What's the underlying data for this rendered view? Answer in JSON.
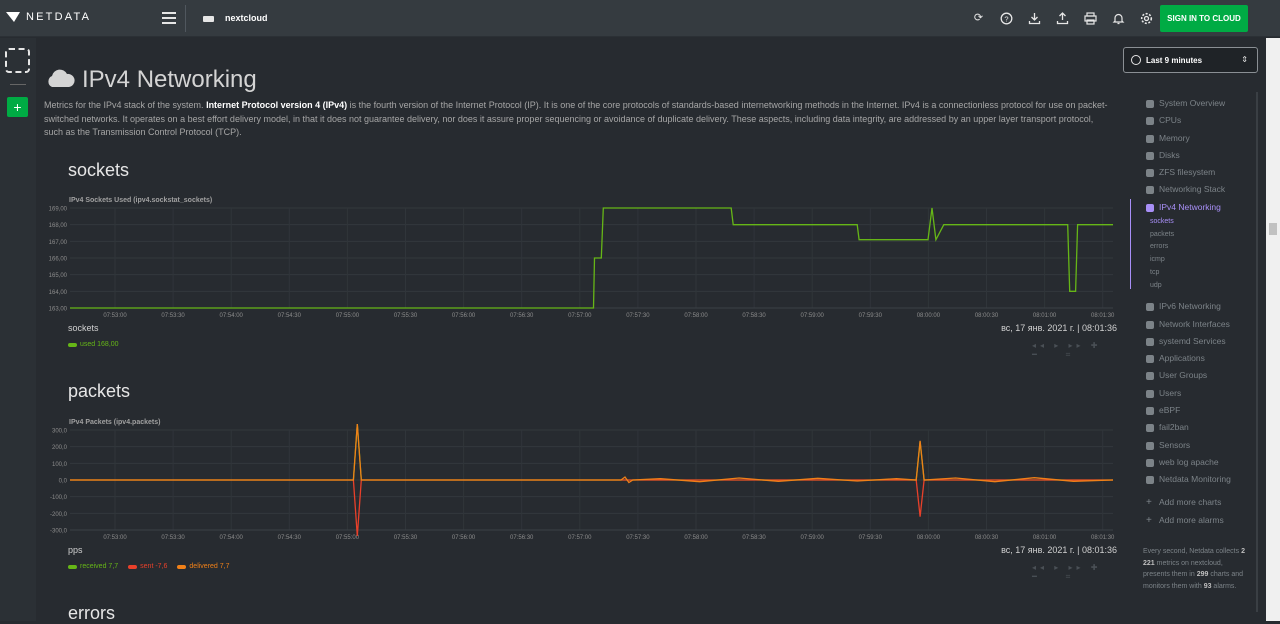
{
  "brand": {
    "name": "NETDATA"
  },
  "host": {
    "name": "nextcloud"
  },
  "topbar": {
    "signin_label": "SIGN IN TO CLOUD"
  },
  "page": {
    "title": "IPv4 Networking",
    "description_pre": "Metrics for the IPv4 stack of the system. ",
    "description_bold": "Internet Protocol version 4 (IPv4)",
    "description_post": " is the fourth version of the Internet Protocol (IP). It is one of the core protocols of standards-based internetworking methods in the Internet. IPv4 is a connectionless protocol for use on packet-switched networks. It operates on a best effort delivery model, in that it does not guarantee delivery, nor does it assure proper sequencing or avoidance of duplicate delivery. These aspects, including data integrity, are addressed by an upper layer transport protocol, such as the Transmission Control Protocol (TCP)."
  },
  "sections": {
    "sockets": {
      "title": "sockets",
      "chart_title": "IPv4 Sockets Used (ipv4.sockstat_sockets)",
      "units": "sockets",
      "datetime": "вс, 17 янв. 2021 г. | 08:01:36",
      "legend": [
        {
          "name": "used",
          "value": "168,00",
          "color": "#66b617"
        }
      ]
    },
    "packets": {
      "title": "packets",
      "chart_title": "IPv4 Packets (ipv4.packets)",
      "units": "pps",
      "datetime": "вс, 17 янв. 2021 г. | 08:01:36",
      "legend": [
        {
          "name": "received",
          "value": "7,7",
          "color": "#66b617"
        },
        {
          "name": "sent",
          "value": "-7,6",
          "color": "#e8402a"
        },
        {
          "name": "delivered",
          "value": "7,7",
          "color": "#f08018"
        }
      ]
    },
    "errors": {
      "title": "errors"
    }
  },
  "chart_data": [
    {
      "type": "line",
      "title": "IPv4 Sockets Used (ipv4.sockstat_sockets)",
      "ylabel": "sockets",
      "ylim": [
        163,
        169
      ],
      "y_ticks": [
        "169,00",
        "168,00",
        "167,00",
        "166,00",
        "165,00",
        "164,00",
        "163,00"
      ],
      "x_ticks": [
        "07:53:00",
        "07:53:30",
        "07:54:00",
        "07:54:30",
        "07:55:00",
        "07:55:30",
        "07:56:00",
        "07:56:30",
        "07:57:00",
        "07:57:30",
        "07:58:00",
        "07:58:30",
        "07:59:00",
        "07:59:30",
        "08:00:00",
        "08:00:30",
        "08:01:00",
        "08:01:30"
      ],
      "series": [
        {
          "name": "used",
          "color": "#66b617",
          "points": [
            [
              0,
              163
            ],
            [
              266,
              163
            ],
            [
              266.5,
              166
            ],
            [
              270,
              166
            ],
            [
              271,
              169
            ],
            [
              336,
              169
            ],
            [
              337,
              168
            ],
            [
              400,
              168
            ],
            [
              401,
              167.1
            ],
            [
              436,
              167.1
            ],
            [
              438,
              169
            ],
            [
              440,
              167.1
            ],
            [
              444,
              168
            ],
            [
              506,
              168
            ],
            [
              507,
              168
            ],
            [
              508,
              164
            ],
            [
              511,
              164
            ],
            [
              512,
              168
            ],
            [
              530,
              168
            ]
          ]
        }
      ]
    },
    {
      "type": "line",
      "title": "IPv4 Packets (ipv4.packets)",
      "ylabel": "pps",
      "ylim": [
        -300,
        300
      ],
      "y_ticks": [
        "300,0",
        "200,0",
        "100,0",
        "0,0",
        "-100,0",
        "-200,0",
        "-300,0"
      ],
      "x_ticks": [
        "07:53:00",
        "07:53:30",
        "07:54:00",
        "07:54:30",
        "07:55:00",
        "07:55:30",
        "07:56:00",
        "07:56:30",
        "07:57:00",
        "07:57:30",
        "07:58:00",
        "07:58:30",
        "07:59:00",
        "07:59:30",
        "08:00:00",
        "08:00:30",
        "08:01:00",
        "08:01:30"
      ],
      "series": [
        {
          "name": "received",
          "color": "#66b617",
          "points": [
            [
              0,
              0
            ],
            [
              144,
              0
            ],
            [
              146,
              340
            ],
            [
              148,
              0
            ],
            [
              430,
              0
            ],
            [
              432,
              230
            ],
            [
              434,
              0
            ],
            [
              530,
              0
            ]
          ]
        },
        {
          "name": "sent",
          "color": "#e8402a",
          "points": [
            [
              0,
              0
            ],
            [
              144,
              0
            ],
            [
              146,
              -340
            ],
            [
              148,
              0
            ],
            [
              430,
              0
            ],
            [
              432,
              -220
            ],
            [
              434,
              0
            ],
            [
              530,
              0
            ]
          ]
        },
        {
          "name": "delivered",
          "color": "#f08018",
          "points": [
            [
              0,
              0
            ],
            [
              144,
              0
            ],
            [
              146,
              350
            ],
            [
              148,
              0
            ],
            [
              280,
              0
            ],
            [
              282,
              18
            ],
            [
              284,
              -15
            ],
            [
              286,
              0
            ],
            [
              300,
              8
            ],
            [
              320,
              -10
            ],
            [
              340,
              12
            ],
            [
              360,
              -8
            ],
            [
              380,
              10
            ],
            [
              400,
              -6
            ],
            [
              420,
              8
            ],
            [
              430,
              0
            ],
            [
              432,
              235
            ],
            [
              434,
              0
            ],
            [
              450,
              12
            ],
            [
              470,
              -10
            ],
            [
              490,
              14
            ],
            [
              510,
              -8
            ],
            [
              530,
              0
            ]
          ]
        }
      ]
    }
  ],
  "time_picker": {
    "label": "Last 9 minutes"
  },
  "nav": {
    "items": [
      {
        "label": "System Overview",
        "name": "system-overview"
      },
      {
        "label": "CPUs",
        "name": "cpus"
      },
      {
        "label": "Memory",
        "name": "memory"
      },
      {
        "label": "Disks",
        "name": "disks"
      },
      {
        "label": "ZFS filesystem",
        "name": "zfs-filesystem"
      },
      {
        "label": "Networking Stack",
        "name": "networking-stack"
      },
      {
        "label": "IPv4 Networking",
        "name": "ipv4-networking",
        "active": true
      }
    ],
    "subitems": [
      "sockets",
      "packets",
      "errors",
      "icmp",
      "tcp",
      "udp"
    ],
    "items2": [
      {
        "label": "IPv6 Networking",
        "name": "ipv6-networking"
      },
      {
        "label": "Network Interfaces",
        "name": "network-interfaces"
      },
      {
        "label": "systemd Services",
        "name": "systemd-services"
      },
      {
        "label": "Applications",
        "name": "applications"
      },
      {
        "label": "User Groups",
        "name": "user-groups"
      },
      {
        "label": "Users",
        "name": "users"
      },
      {
        "label": "eBPF",
        "name": "ebpf"
      },
      {
        "label": "fail2ban",
        "name": "fail2ban"
      },
      {
        "label": "Sensors",
        "name": "sensors"
      },
      {
        "label": "web log apache",
        "name": "web-log-apache"
      },
      {
        "label": "Netdata Monitoring",
        "name": "netdata-monitoring"
      }
    ],
    "add_items": [
      {
        "label": "Add more charts",
        "name": "add-more-charts"
      },
      {
        "label": "Add more alarms",
        "name": "add-more-alarms"
      }
    ],
    "note": {
      "p1": "Every second, Netdata collects ",
      "metrics": "2 221",
      "p2": " metrics on nextcloud, presents them in ",
      "charts": "299",
      "p3": " charts and monitors them with ",
      "alarms": "93",
      "p4": " alarms."
    }
  }
}
